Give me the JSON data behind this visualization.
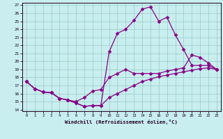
{
  "title": "",
  "xlabel": "Windchill (Refroidissement éolien,°C)",
  "bg_color": "#c8eef0",
  "grid_color": "#a0d0c8",
  "line_color": "#880088",
  "xmin": 0,
  "xmax": 23,
  "ymin": 14,
  "ymax": 27,
  "line1_x": [
    0,
    1,
    2,
    3,
    4,
    5,
    6,
    7,
    8,
    9,
    10,
    11,
    12,
    13,
    14,
    15,
    16,
    17,
    18,
    19,
    20,
    21,
    22,
    23
  ],
  "line1_y": [
    17.5,
    16.6,
    16.2,
    16.1,
    15.4,
    15.2,
    14.8,
    14.4,
    14.5,
    14.5,
    15.5,
    16.0,
    16.5,
    17.0,
    17.5,
    17.8,
    18.1,
    18.3,
    18.5,
    18.7,
    18.9,
    19.1,
    19.2,
    19.0
  ],
  "line2_x": [
    0,
    1,
    2,
    3,
    4,
    5,
    6,
    7,
    8,
    9,
    10,
    11,
    12,
    13,
    14,
    15,
    16,
    17,
    18,
    19,
    20,
    21,
    22,
    23
  ],
  "line2_y": [
    17.5,
    16.6,
    16.2,
    16.1,
    15.4,
    15.2,
    15.0,
    15.5,
    16.3,
    16.5,
    18.0,
    18.5,
    19.0,
    18.5,
    18.5,
    18.5,
    18.5,
    18.8,
    19.0,
    19.2,
    20.8,
    20.5,
    19.8,
    19.0
  ],
  "line3_x": [
    0,
    1,
    2,
    3,
    4,
    5,
    6,
    7,
    8,
    9,
    10,
    11,
    12,
    13,
    14,
    15,
    16,
    17,
    18,
    19,
    20,
    21,
    22,
    23
  ],
  "line3_y": [
    17.5,
    16.6,
    16.2,
    16.1,
    15.4,
    15.2,
    14.8,
    14.4,
    14.5,
    14.5,
    21.2,
    23.5,
    24.0,
    25.1,
    26.5,
    26.8,
    25.0,
    25.5,
    23.3,
    21.5,
    19.5,
    19.5,
    19.5,
    19.0
  ],
  "yticks": [
    14,
    15,
    16,
    17,
    18,
    19,
    20,
    21,
    22,
    23,
    24,
    25,
    26,
    27
  ],
  "xticks": [
    0,
    1,
    2,
    3,
    4,
    5,
    6,
    7,
    8,
    9,
    10,
    11,
    12,
    13,
    14,
    15,
    16,
    17,
    18,
    19,
    20,
    21,
    22,
    23
  ],
  "tick_fontsize": 4.0,
  "xlabel_fontsize": 5.2,
  "marker_size": 2.5,
  "line_width": 0.9
}
